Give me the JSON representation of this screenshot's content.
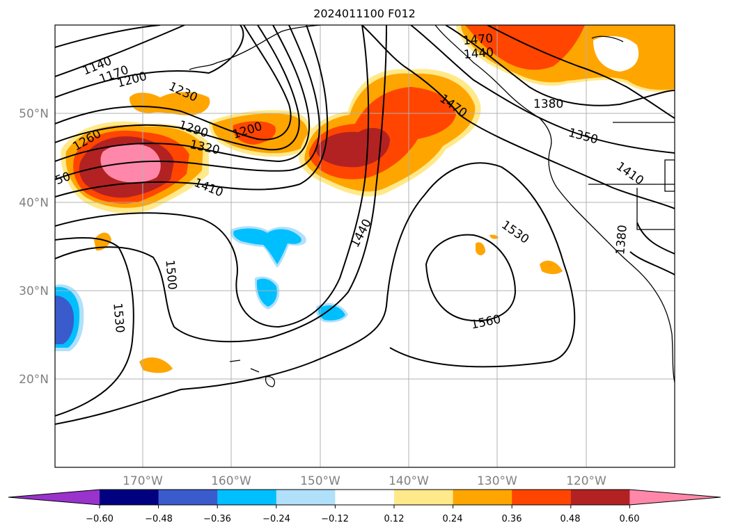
{
  "title": "2024011100 F012",
  "lat_labels": [
    "50°N",
    "40°N",
    "30°N",
    "20°N"
  ],
  "lon_labels": [
    "170°W",
    "160°W",
    "150°W",
    "140°W",
    "130°W",
    "120°W"
  ],
  "contour_labels": [
    "1140",
    "1170",
    "1200",
    "1230",
    "1260",
    "1290",
    "1320",
    "1200",
    "50",
    "1410",
    "1440",
    "1470",
    "1470",
    "1440",
    "1380",
    "1350",
    "1410",
    "1500",
    "1530",
    "1530",
    "1560",
    "1380"
  ],
  "colorbar": {
    "ticks": [
      "−0.60",
      "−0.48",
      "−0.36",
      "−0.24",
      "−0.12",
      "0.12",
      "0.24",
      "0.36",
      "0.48",
      "0.60"
    ],
    "colors": [
      "#9933cc",
      "#000080",
      "#3a5bcc",
      "#00bfff",
      "#b0e0fa",
      "#ffffff",
      "#ffe98a",
      "#ffa500",
      "#ff4500",
      "#b22222",
      "#ff88aa"
    ]
  },
  "colors": {
    "pink": "#ff88aa",
    "darkred": "#b22222",
    "red": "#ff4500",
    "orange": "#ffa500",
    "yellow": "#ffe98a",
    "cyan": "#00bfff",
    "lightblue": "#b0e0fa",
    "blue": "#3a5bcc"
  }
}
